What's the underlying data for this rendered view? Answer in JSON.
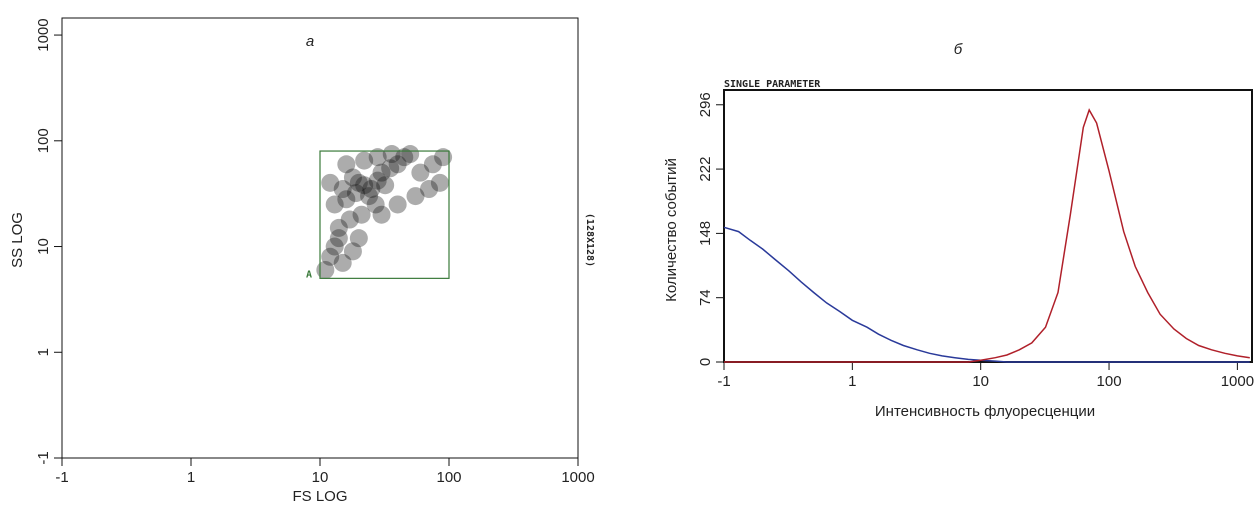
{
  "chart_data": [
    {
      "type": "scatter",
      "title": "а",
      "xlabel": "FS LOG",
      "ylabel": "SS LOG",
      "annotation": "(128X128)",
      "log_x": true,
      "log_y": true,
      "color": "#111111",
      "xlim": [
        0.1,
        1000
      ],
      "ylim": [
        0.1,
        1450
      ],
      "xticks": [
        {
          "value": 0.1,
          "label": "-1"
        },
        1,
        10,
        100,
        1000
      ],
      "yticks": [
        {
          "value": 0.1,
          "label": "-1"
        },
        1,
        10,
        100,
        1000
      ],
      "gate": {
        "label": "A",
        "color": "#3a7a3a",
        "x": [
          10,
          100
        ],
        "y": [
          5,
          80
        ]
      },
      "x": [
        18,
        20,
        22,
        25,
        28,
        30,
        24,
        19,
        16,
        15,
        35,
        40,
        45,
        50,
        32,
        27,
        21,
        17,
        14,
        13,
        12,
        11,
        15,
        20,
        30,
        40,
        55,
        70,
        85,
        60,
        75,
        90,
        13,
        12,
        16,
        22,
        28,
        36,
        14,
        18
      ],
      "values": [
        45,
        40,
        38,
        35,
        42,
        50,
        30,
        32,
        28,
        35,
        55,
        60,
        70,
        75,
        38,
        25,
        20,
        18,
        15,
        10,
        8,
        6,
        7,
        12,
        20,
        25,
        30,
        35,
        40,
        50,
        60,
        70,
        25,
        40,
        60,
        65,
        70,
        75,
        12,
        9
      ]
    },
    {
      "type": "line",
      "title": "б",
      "header": "SINGLE PARAMETER",
      "xlabel": "Интенсивность флуоресценции",
      "ylabel": "Количество событий",
      "log_x": true,
      "xlim": [
        0.1,
        1300
      ],
      "ylim": [
        0,
        313
      ],
      "xticks": [
        {
          "value": 0.1,
          "label": "-1"
        },
        1,
        10,
        100,
        1000
      ],
      "yticks": [
        0,
        74,
        148,
        222,
        296
      ],
      "x": [
        0.1,
        0.13,
        0.16,
        0.2,
        0.25,
        0.32,
        0.4,
        0.5,
        0.63,
        0.8,
        1,
        1.3,
        1.6,
        2,
        2.5,
        3.2,
        4,
        5,
        6.3,
        8,
        10,
        13,
        16,
        20,
        25,
        32,
        40,
        50,
        63,
        70,
        80,
        100,
        130,
        160,
        200,
        250,
        320,
        400,
        500,
        630,
        800,
        1000,
        1250
      ],
      "series": [
        {
          "name": "blue",
          "color": "#2a3a9a",
          "values": [
            155,
            150,
            140,
            130,
            118,
            105,
            92,
            80,
            68,
            58,
            48,
            40,
            32,
            25,
            19,
            14,
            10,
            7,
            5,
            3,
            2,
            1,
            0,
            0,
            0,
            0,
            0,
            0,
            0,
            0,
            0,
            0,
            0,
            0,
            0,
            0,
            0,
            0,
            0,
            0,
            0,
            0,
            0
          ]
        },
        {
          "name": "red",
          "color": "#b0202a",
          "values": [
            0,
            0,
            0,
            0,
            0,
            0,
            0,
            0,
            0,
            0,
            0,
            0,
            0,
            0,
            0,
            0,
            0,
            0,
            0,
            0,
            2,
            5,
            8,
            14,
            22,
            40,
            80,
            170,
            270,
            290,
            275,
            220,
            150,
            110,
            80,
            55,
            38,
            27,
            19,
            14,
            10,
            7,
            5
          ]
        }
      ]
    }
  ]
}
